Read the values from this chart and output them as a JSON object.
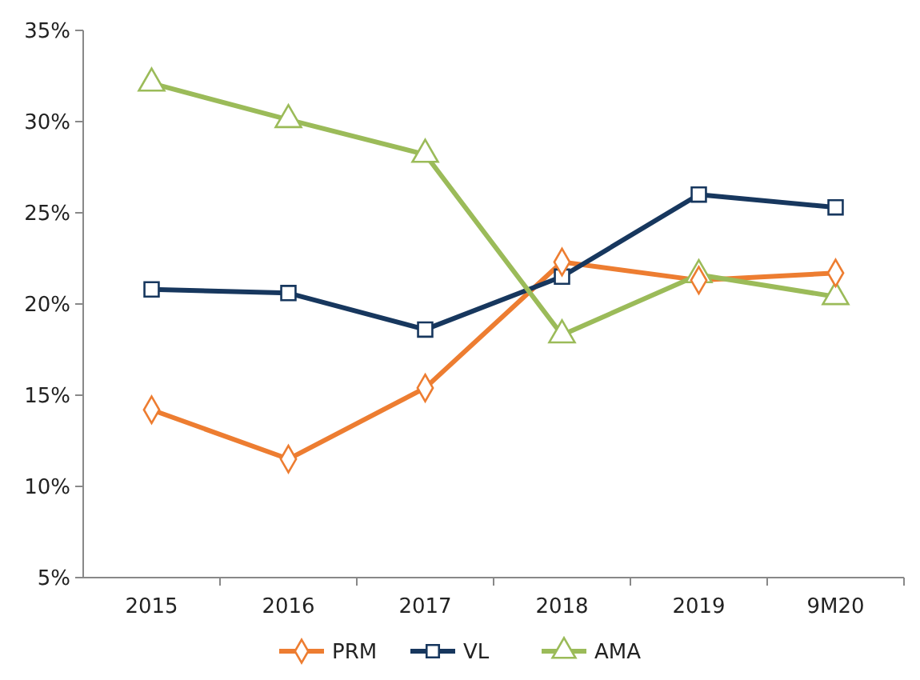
{
  "chart_data": {
    "type": "line",
    "categories": [
      "2015",
      "2016",
      "2017",
      "2018",
      "2019",
      "9M20"
    ],
    "series": [
      {
        "name": "PRM",
        "color": "#ed7d31",
        "marker": "diamond",
        "values": [
          14.2,
          11.5,
          15.4,
          22.3,
          21.3,
          21.7
        ]
      },
      {
        "name": "VL",
        "color": "#17375e",
        "marker": "square",
        "values": [
          20.8,
          20.6,
          18.6,
          21.5,
          26.0,
          25.3
        ]
      },
      {
        "name": "AMA",
        "color": "#9bbb59",
        "marker": "triangle",
        "values": [
          32.1,
          30.1,
          28.2,
          18.3,
          21.6,
          20.4
        ]
      }
    ],
    "ylim": [
      5,
      35
    ],
    "yticks": [
      {
        "value": 5,
        "label": "5%"
      },
      {
        "value": 10,
        "label": "10%"
      },
      {
        "value": 15,
        "label": "15%"
      },
      {
        "value": 20,
        "label": "20%"
      },
      {
        "value": 25,
        "label": "25%"
      },
      {
        "value": 30,
        "label": "30%"
      },
      {
        "value": 35,
        "label": "35%"
      }
    ],
    "grid": false,
    "legend": "bottom",
    "line_style": "solid"
  }
}
